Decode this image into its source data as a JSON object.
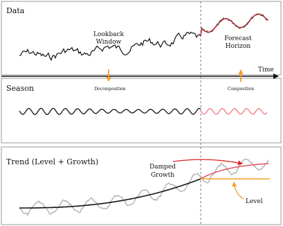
{
  "panels": {
    "data": {
      "title": "Data",
      "lookback_line1": "Lookback",
      "lookback_line2": "Window",
      "forecast_line1": "Forecast",
      "forecast_line2": "Horizon"
    },
    "season": {
      "title": "Season"
    },
    "trend": {
      "title": "Trend (Level + Growth)",
      "damped_line1": "Damped",
      "damped_line2": "Growth",
      "level": "Level"
    }
  },
  "axis": {
    "time_label": "Time"
  },
  "annotations": {
    "decomposition": "Decomposition",
    "composition": "Composition"
  },
  "colors": {
    "line": "#111111",
    "forecast": "#b22a36",
    "season_forecast": "#ef7f86",
    "level": "#f4a028",
    "orange_arrow": "#f39c28",
    "red_arrow": "#e02020",
    "gray": "#aaaaaa",
    "divider": "#777777"
  }
}
